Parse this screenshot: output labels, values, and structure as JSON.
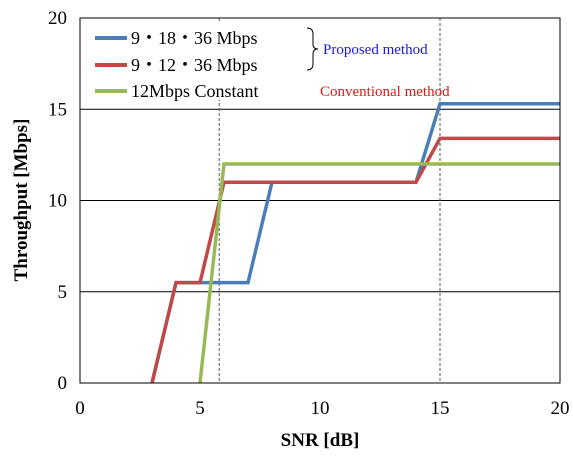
{
  "chart_data": {
    "type": "line",
    "xlabel": "SNR [dB]",
    "ylabel": "Throughput [Mbps]",
    "xlim": [
      0,
      20
    ],
    "ylim": [
      0,
      20
    ],
    "xticks": [
      "0",
      "5",
      "10",
      "15",
      "20"
    ],
    "yticks": [
      "0",
      "5",
      "10",
      "15",
      "20"
    ],
    "grid": "horizontal",
    "legend_position": "top-left",
    "series": [
      {
        "name": "9・18・36 Mbps",
        "color": "#4a7ebb",
        "points": [
          [
            3,
            0
          ],
          [
            4,
            5.5
          ],
          [
            7,
            5.5
          ],
          [
            8,
            11
          ],
          [
            14,
            11
          ],
          [
            15,
            15.3
          ],
          [
            20,
            15.3
          ]
        ]
      },
      {
        "name": "9・12・36 Mbps",
        "color": "#be4b48",
        "points": [
          [
            3,
            0
          ],
          [
            4,
            5.5
          ],
          [
            5,
            5.5
          ],
          [
            6,
            11
          ],
          [
            14,
            11
          ],
          [
            15,
            13.4
          ],
          [
            20,
            13.4
          ]
        ]
      },
      {
        "name": "12Mbps Constant",
        "color": "#98b954",
        "points": [
          [
            5,
            0
          ],
          [
            6,
            12
          ],
          [
            20,
            12
          ]
        ]
      }
    ],
    "vlines": [
      5.8,
      15
    ],
    "annotations": [
      {
        "text": "Proposed method",
        "color": "#1a1adc"
      },
      {
        "text": "Conventional method",
        "color": "#dc1a1a"
      }
    ]
  }
}
